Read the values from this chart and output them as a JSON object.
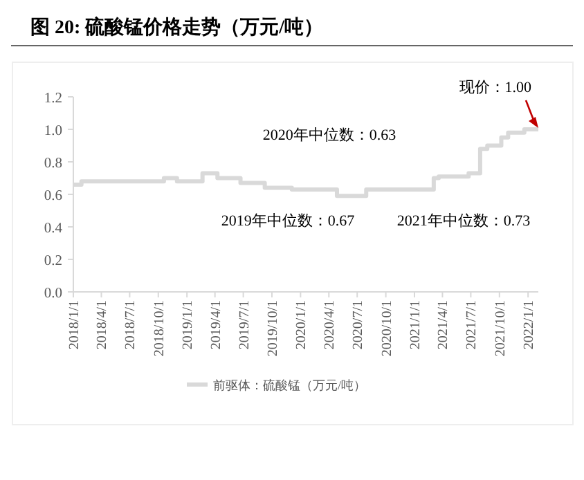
{
  "chart_data": {
    "type": "step",
    "title": "图 20:  硫酸锰价格走势（万元/吨）",
    "x": [
      "2018-01-01",
      "2018-01-27",
      "2018-10-19",
      "2018-11-30",
      "2019-02-20",
      "2019-04-09",
      "2019-06-22",
      "2019-09-08",
      "2019-12-04",
      "2020-04-27",
      "2020-07-30",
      "2021-03-04",
      "2021-03-20",
      "2021-06-24",
      "2021-07-31",
      "2021-08-23",
      "2021-10-07",
      "2021-10-29",
      "2021-12-20",
      "2022-02-03"
    ],
    "series": [
      {
        "name": "前驱体：硫酸锰（万元/吨）",
        "color": "#d9d9d9",
        "values": [
          0.66,
          0.68,
          0.7,
          0.68,
          0.73,
          0.7,
          0.67,
          0.64,
          0.63,
          0.59,
          0.63,
          0.7,
          0.71,
          0.73,
          0.88,
          0.9,
          0.95,
          0.98,
          1.0,
          1.0
        ]
      }
    ],
    "xlim": [
      "2018-01-01",
      "2022-02-03"
    ],
    "xticks": [
      {
        "value": "2018-01-01",
        "label": "2018/1/1"
      },
      {
        "value": "2018-04-01",
        "label": "2018/4/1"
      },
      {
        "value": "2018-07-01",
        "label": "2018/7/1"
      },
      {
        "value": "2018-10-01",
        "label": "2018/10/1"
      },
      {
        "value": "2019-01-01",
        "label": "2019/1/1"
      },
      {
        "value": "2019-04-01",
        "label": "2019/4/1"
      },
      {
        "value": "2019-07-01",
        "label": "2019/7/1"
      },
      {
        "value": "2019-10-01",
        "label": "2019/10/1"
      },
      {
        "value": "2020-01-01",
        "label": "2020/1/1"
      },
      {
        "value": "2020-04-01",
        "label": "2020/4/1"
      },
      {
        "value": "2020-07-01",
        "label": "2020/7/1"
      },
      {
        "value": "2020-10-01",
        "label": "2020/10/1"
      },
      {
        "value": "2021-01-01",
        "label": "2021/1/1"
      },
      {
        "value": "2021-04-01",
        "label": "2021/4/1"
      },
      {
        "value": "2021-07-01",
        "label": "2021/7/1"
      },
      {
        "value": "2021-10-01",
        "label": "2021/10/1"
      },
      {
        "value": "2022-01-01",
        "label": "2022/1/1"
      }
    ],
    "ylim": [
      0,
      1.2
    ],
    "yticks": [
      {
        "value": 0,
        "label": "0.0"
      },
      {
        "value": 0.2,
        "label": "0.2"
      },
      {
        "value": 0.4,
        "label": "0.4"
      },
      {
        "value": 0.6,
        "label": "0.6"
      },
      {
        "value": 0.8,
        "label": "0.8"
      },
      {
        "value": 1.0,
        "label": "1.0"
      },
      {
        "value": 1.2,
        "label": "1.2"
      }
    ],
    "annotations": [
      {
        "text": "现价：1.00",
        "x": "2022-02-03",
        "y": 1.0
      },
      "2020年中位数：0.63",
      "2019年中位数：0.67",
      "2021年中位数：0.73"
    ],
    "legend": "bottom",
    "grid": false
  }
}
